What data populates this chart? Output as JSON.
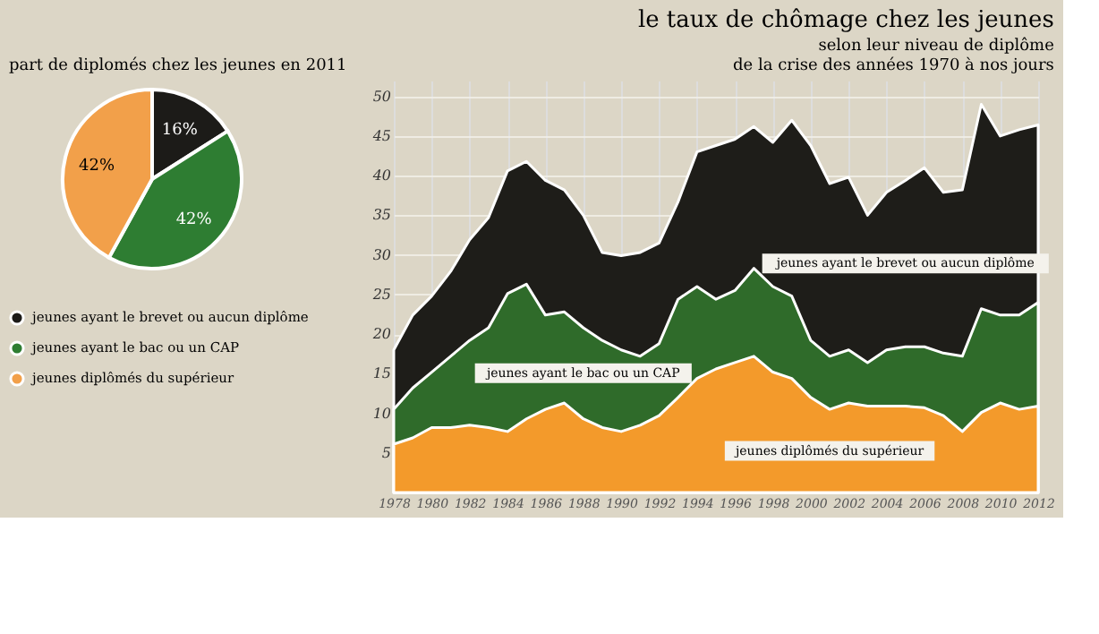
{
  "chart_data": [
    {
      "type": "pie",
      "title": "part de diplomés chez les jeunes  en 2011",
      "categories": [
        "jeunes ayant le brevet ou aucun diplôme",
        "jeunes ayant le bac ou un CAP",
        "jeunes diplômés du supérieur"
      ],
      "values": [
        16,
        42,
        42
      ],
      "value_labels": [
        "16%",
        "42%",
        "42%"
      ],
      "colors": [
        "#1c1b18",
        "#2e7d32",
        "#f2a04a"
      ],
      "legend": "bottom"
    },
    {
      "type": "area",
      "title": "le taux de chômage chez les jeunes",
      "subtitle": "selon leur niveau de diplôme\nde la crise des années 1970 à nos jours",
      "x": [
        1978,
        1979,
        1980,
        1981,
        1982,
        1983,
        1984,
        1985,
        1986,
        1987,
        1988,
        1989,
        1990,
        1991,
        1992,
        1993,
        1994,
        1995,
        1996,
        1997,
        1998,
        1999,
        2000,
        2001,
        2002,
        2003,
        2004,
        2005,
        2006,
        2007,
        2008,
        2009,
        2010,
        2011,
        2012
      ],
      "series": [
        {
          "name": "jeunes ayant le brevet ou aucun diplôme",
          "color": "#1e1d19",
          "values": [
            18,
            22.4,
            24.8,
            27.9,
            31.9,
            34.7,
            40.6,
            41.8,
            39.4,
            38.2,
            35,
            30.3,
            29.9,
            30.3,
            31.5,
            36.7,
            43,
            43.8,
            44.6,
            46.2,
            44.2,
            47,
            43.8,
            39,
            39.8,
            35,
            37.9,
            39.4,
            41,
            37.9,
            38.2,
            49,
            45,
            45.8,
            46.4
          ]
        },
        {
          "name": "jeunes ayant le bac ou un CAP",
          "color": "#2f6b2a",
          "values": [
            10.5,
            13.2,
            15.2,
            17.2,
            19.2,
            20.8,
            25.1,
            26.3,
            22.4,
            22.8,
            20.8,
            19.2,
            18,
            17.2,
            18.8,
            24.4,
            26,
            24.4,
            25.5,
            28.3,
            26,
            24.8,
            19.2,
            17.2,
            18,
            16.4,
            18,
            18.4,
            18.4,
            17.6,
            17.2,
            23.2,
            22.4,
            22.4,
            24
          ]
        },
        {
          "name": "jeunes diplômés du supérieur",
          "color": "#f39a2b",
          "values": [
            6.1,
            6.9,
            8.2,
            8.2,
            8.5,
            8.2,
            7.7,
            9.3,
            10.5,
            11.3,
            9.3,
            8.2,
            7.7,
            8.5,
            9.7,
            12,
            14.4,
            15.6,
            16.4,
            17.2,
            15.2,
            14.4,
            12,
            10.5,
            11.3,
            10.9,
            10.9,
            10.9,
            10.7,
            9.7,
            7.7,
            10.1,
            11.3,
            10.5,
            10.9
          ]
        }
      ],
      "xlim": [
        1978,
        2012
      ],
      "xticks": [
        1978,
        1980,
        1982,
        1984,
        1986,
        1988,
        1990,
        1992,
        1994,
        1996,
        1998,
        2000,
        2002,
        2004,
        2006,
        2008,
        2010,
        2012
      ],
      "ylim": [
        0,
        52
      ],
      "yticks": [
        5,
        10,
        15,
        20,
        25,
        30,
        35,
        40,
        45,
        50
      ],
      "grid": true
    }
  ]
}
